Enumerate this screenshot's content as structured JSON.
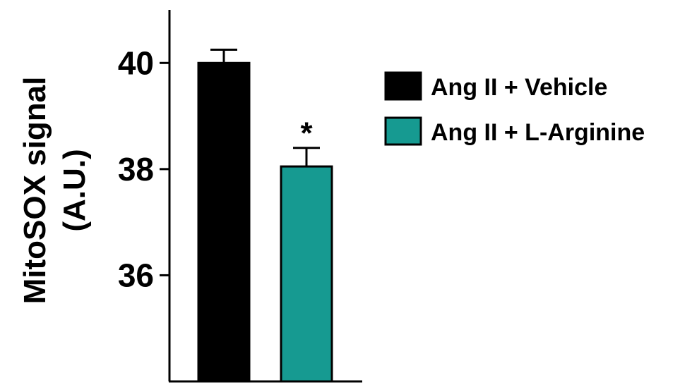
{
  "chart_data": {
    "type": "bar",
    "categories": [
      "Ang II + Vehicle",
      "Ang II + L-Arginine"
    ],
    "series": [
      {
        "name": "Ang II + Vehicle",
        "value": 40.0,
        "error": 0.25,
        "color": "#000000"
      },
      {
        "name": "Ang II + L-Arginine",
        "value": 38.05,
        "error": 0.35,
        "color": "#169a91",
        "annotation": "*"
      }
    ],
    "ylabel_line1": "MitoSOX signal",
    "ylabel_line2": "(A.U.)",
    "yticks": [
      36,
      38,
      40
    ],
    "ylim": [
      34,
      41
    ],
    "grid": false,
    "legend_position": "right"
  }
}
